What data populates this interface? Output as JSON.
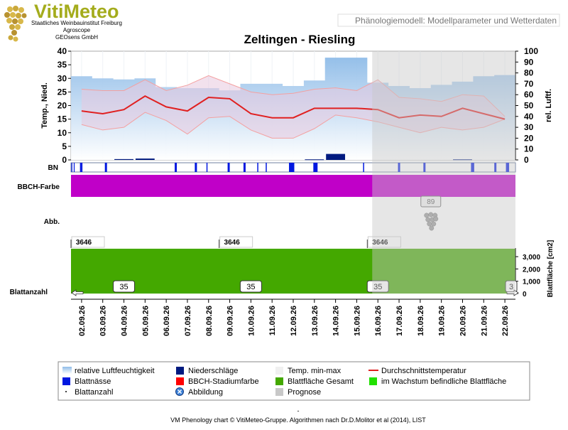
{
  "header": {
    "logo_text": "VitiMeteo",
    "org_lines": [
      "Staatliches Weinbauinstitut Freiburg",
      "Agroscope",
      "GEOsens GmbH"
    ],
    "subtitle": "Phänologiemodell: Modellparameter und Wetterdaten"
  },
  "colors": {
    "humidity": "#a9c9ee",
    "minmax_fill": "#e6cfe3",
    "minmax_line": "#f4a0a0",
    "avg_temp": "#e02020",
    "precip": "#001a80",
    "leaf_wet": "#0018e0",
    "bbch": "#c000c8",
    "leaf_total": "#44a800",
    "prognose": "#c8c8c8"
  },
  "chart_data": {
    "type": "line",
    "title": "Zeltingen - Riesling",
    "ylabel_left": "Temp., Nied.",
    "ylabel_right": "rel. Luftf.",
    "ylim_left": [
      0,
      40
    ],
    "ylim_right": [
      0,
      100
    ],
    "yticks_left": [
      "0",
      "5",
      "10",
      "15",
      "20",
      "25",
      "30",
      "35",
      "40"
    ],
    "yticks_right": [
      "0",
      "10",
      "20",
      "30",
      "40",
      "50",
      "60",
      "70",
      "80",
      "90",
      "100"
    ],
    "categories": [
      "02.09.26",
      "03.09.26",
      "04.09.26",
      "05.09.26",
      "06.09.26",
      "07.09.26",
      "08.09.26",
      "09.09.26",
      "10.09.26",
      "11.09.26",
      "12.09.26",
      "13.09.26",
      "14.09.26",
      "15.09.26",
      "16.09.26",
      "17.09.26",
      "18.09.26",
      "19.09.26",
      "20.09.26",
      "21.09.26",
      "22.09.26"
    ],
    "series": [
      {
        "key": "humidity",
        "values": [
          77,
          75,
          74,
          75,
          67,
          66,
          66,
          64,
          70,
          70,
          68,
          73,
          94,
          94,
          71,
          68,
          66,
          69,
          72,
          77,
          78
        ]
      },
      {
        "key": "temp_max",
        "values": [
          26,
          25.5,
          25.5,
          29.5,
          25.5,
          27.5,
          31,
          28,
          25,
          24,
          24.5,
          26,
          26.5,
          25.5,
          29.5,
          23,
          22.5,
          21.5,
          24,
          23.5,
          16
        ]
      },
      {
        "key": "temp_min",
        "values": [
          13,
          11,
          12,
          17.5,
          14.5,
          9.5,
          15.5,
          16,
          11,
          8,
          8,
          11.5,
          16.5,
          15.5,
          14,
          12,
          10,
          12,
          11,
          12,
          15
        ]
      },
      {
        "key": "temp_avg",
        "values": [
          18,
          17,
          18.5,
          23.5,
          19.5,
          18,
          23,
          22.5,
          17,
          15.5,
          15.5,
          19,
          19,
          19,
          18.5,
          15.5,
          16.5,
          16,
          19,
          17,
          15
        ]
      },
      {
        "key": "precip",
        "values": [
          0,
          0,
          0.3,
          0.5,
          0,
          0,
          0,
          0,
          0,
          0,
          0,
          0.2,
          2.2,
          0,
          0,
          0,
          0,
          0,
          0.2,
          0,
          0
        ]
      }
    ],
    "prognose_start": "16.09.26",
    "bn_label": "BN",
    "bn_events": [
      [
        0.02,
        0.05
      ],
      [
        0.13,
        0.15
      ],
      [
        0.425,
        0.43
      ],
      [
        0.44,
        0.445
      ],
      [
        0.45,
        0.455
      ],
      [
        0.46,
        0.465
      ],
      [
        0.5,
        0.51
      ],
      [
        1.6,
        1.7
      ],
      [
        4.9,
        5.0
      ],
      [
        5.85,
        5.95
      ],
      [
        6.4,
        6.45
      ],
      [
        7.4,
        7.5
      ],
      [
        8.15,
        8.25
      ],
      [
        8.8,
        8.85
      ],
      [
        9.2,
        9.25
      ],
      [
        10.3,
        10.55
      ],
      [
        11.45,
        11.65
      ],
      [
        13.8,
        13.85
      ],
      [
        15.45,
        15.55
      ],
      [
        16.65,
        16.75
      ],
      [
        18.9,
        19.05
      ],
      [
        20.0,
        20.1
      ],
      [
        20.55,
        20.7
      ]
    ],
    "bbch_label": "BBCH-Farbe",
    "abb_label": "Abb.",
    "abb_value": "89",
    "abb_icon": "grape-bunch-icon",
    "leaf_area_labels": [
      "3646",
      "3646",
      "3646"
    ],
    "leaf_area_label_days": [
      "02.09.26",
      "09.09.26",
      "16.09.26"
    ],
    "leaf_area_value": 3646,
    "leaf_area_axis_label": "Blattfläche [cm2]",
    "leaf_area_ticks": [
      "0",
      "1,000",
      "2,000",
      "3,000"
    ],
    "leaf_area_tick_values": [
      0,
      1000,
      2000,
      3000
    ],
    "leaf_area_max": 3700,
    "leaf_count_label": "Blattanzahl",
    "leaf_count_labels": [
      "35",
      "35",
      "35",
      "3"
    ],
    "leaf_count_label_days": [
      "04.09.26",
      "10.09.26",
      "16.09.26",
      "22.09.26"
    ]
  },
  "legend": {
    "items": [
      {
        "label": "relative Luftfeuchtigkeit",
        "icon": "humidity-gradient-icon"
      },
      {
        "label": "Niederschläge",
        "icon": "precip-square-icon"
      },
      {
        "label": "Temp. min-max",
        "icon": "minmax-square-icon"
      },
      {
        "label": "Durchschnittstemperatur",
        "icon": "avg-line-icon"
      },
      {
        "label": "Blattnässe",
        "icon": "leafwet-square-icon"
      },
      {
        "label": "BBCH-Stadiumfarbe",
        "icon": "bbch-square-icon"
      },
      {
        "label": "Blattfläche Gesamt",
        "icon": "leafarea-square-icon"
      },
      {
        "label": "im Wachstum befindliche Blattfläche",
        "icon": "growing-leaf-square-icon"
      },
      {
        "label": "Blattanzahl",
        "icon": "dot-icon"
      },
      {
        "label": "Abbildung",
        "icon": "abbildung-circle-icon"
      },
      {
        "label": "Prognose",
        "icon": "prognose-square-icon"
      }
    ]
  },
  "footer": {
    "dash": "-",
    "credit": "VM Phenology chart © VitiMeteo-Gruppe. Algorithmen nach Dr.D.Molitor et al (2014), LIST"
  }
}
